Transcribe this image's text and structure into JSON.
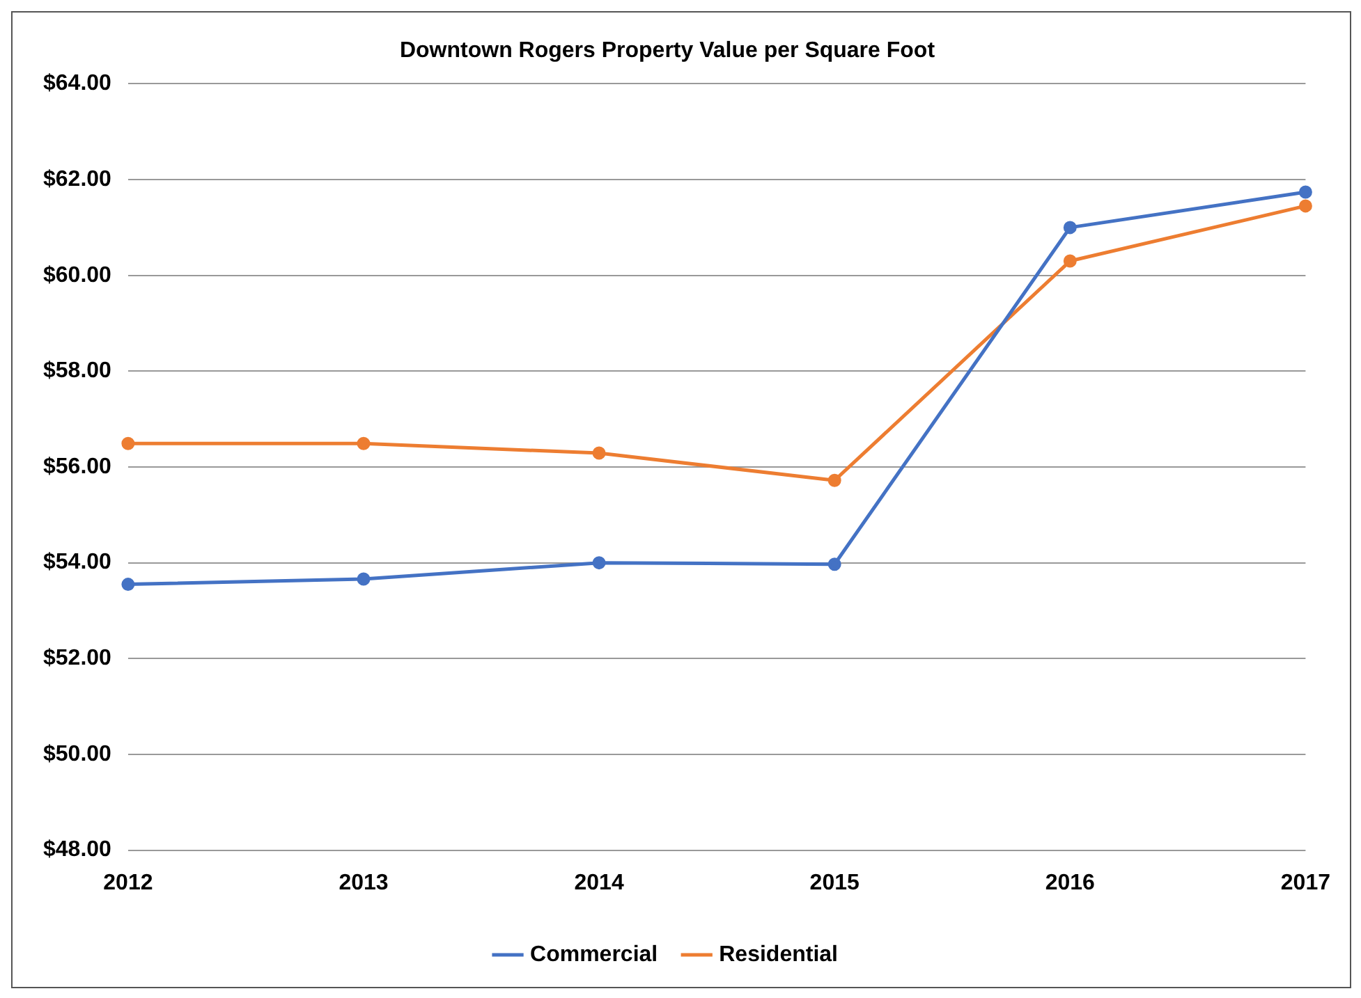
{
  "chart_data": {
    "type": "line",
    "title": "Downtown Rogers Property Value per Square Foot",
    "categories": [
      "2012",
      "2013",
      "2014",
      "2015",
      "2016",
      "2017"
    ],
    "series": [
      {
        "name": "Commercial",
        "color": "#4472c4",
        "values": [
          53.55,
          53.66,
          54.0,
          53.97,
          61.0,
          61.74
        ]
      },
      {
        "name": "Residential",
        "color": "#ed7d31",
        "values": [
          56.49,
          56.49,
          56.29,
          55.72,
          60.3,
          61.45
        ]
      }
    ],
    "ylim": [
      48,
      64
    ],
    "yticks": [
      {
        "value": 48,
        "label": "$48.00"
      },
      {
        "value": 50,
        "label": "$50.00"
      },
      {
        "value": 52,
        "label": "$52.00"
      },
      {
        "value": 54,
        "label": "$54.00"
      },
      {
        "value": 56,
        "label": "$56.00"
      },
      {
        "value": 58,
        "label": "$58.00"
      },
      {
        "value": 60,
        "label": "$60.00"
      },
      {
        "value": 62,
        "label": "$62.00"
      },
      {
        "value": 64,
        "label": "$64.00"
      }
    ],
    "grid": "y",
    "legend": "bottom",
    "marker": "circle",
    "line_style": "solid"
  }
}
